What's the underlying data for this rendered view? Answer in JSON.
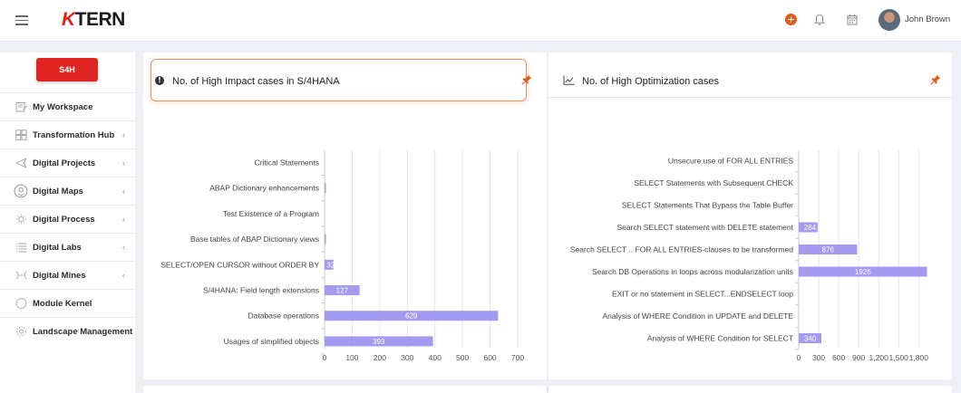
{
  "header": {
    "logo_k": "K",
    "logo_rest": "TERN",
    "user_name": "John Brown"
  },
  "sidebar": {
    "brand_label": "S4H",
    "items": [
      {
        "label": "My Workspace",
        "has_chevron": false
      },
      {
        "label": "Transformation Hub",
        "has_chevron": true
      },
      {
        "label": "Digital Projects",
        "has_chevron": true
      },
      {
        "label": "Digital Maps",
        "has_chevron": true
      },
      {
        "label": "Digital Process",
        "has_chevron": true
      },
      {
        "label": "Digital Labs",
        "has_chevron": true
      },
      {
        "label": "Digital Mines",
        "has_chevron": true
      },
      {
        "label": "Module Kernel",
        "has_chevron": false
      },
      {
        "label": "Landscape Management",
        "has_chevron": false
      }
    ],
    "chevron": "‹"
  },
  "panels": {
    "left_title": "No. of High Impact cases in S/4HANA",
    "right_title": "No. of High Optimization cases"
  },
  "colors": {
    "accent": "#f08a5d",
    "bar": "#a29bf0",
    "brand_red": "#e02522"
  },
  "chart_data": [
    {
      "type": "bar",
      "orientation": "horizontal",
      "title": "No. of High Impact cases in S/4HANA",
      "categories": [
        "Critical Statements",
        "ABAP Dictionary enhancements",
        "Test Existence of a Program",
        "Base tables of ABAP Dictionary views",
        "SELECT/OPEN CURSOR without ORDER BY",
        "S/4HANA: Field length extensions",
        "Database operations",
        "Usages of simplified objects"
      ],
      "values": [
        0,
        2,
        0,
        2,
        32,
        127,
        629,
        393
      ],
      "data_labels": [
        "",
        "",
        "",
        "",
        "32",
        "127",
        "629",
        "393"
      ],
      "xlim": [
        0,
        700
      ],
      "xticks": [
        0,
        100,
        200,
        300,
        400,
        500,
        600,
        700
      ],
      "xtick_labels": [
        "0",
        "100",
        "200",
        "300",
        "400",
        "500",
        "600",
        "700"
      ],
      "grid": true
    },
    {
      "type": "bar",
      "orientation": "horizontal",
      "title": "No. of High Optimization cases",
      "categories": [
        "Unsecure use of FOR ALL ENTRIES",
        "SELECT Statements with Subsequent CHECK",
        "SELECT Statements That Bypass the Table Buffer",
        "Search SELECT statement with DELETE statement",
        "Search SELECT .. FOR ALL ENTRIES-clauses to be transformed",
        "Search DB Operations in loops across modularization units",
        "EXIT or no statement in SELECT...ENDSELECT loop",
        "Analysis of WHERE Condition in UPDATE and DELETE",
        "Analysis of WHERE Condition for SELECT"
      ],
      "values": [
        0,
        0,
        0,
        284,
        876,
        1926,
        0,
        0,
        340
      ],
      "data_labels": [
        "",
        "",
        "",
        "284",
        "876",
        "1926",
        "",
        "",
        "340"
      ],
      "xlim": [
        0,
        2000
      ],
      "xticks": [
        0,
        300,
        600,
        900,
        1200,
        1500,
        1800
      ],
      "xtick_labels": [
        "0",
        "300",
        "600",
        "900",
        "1,200",
        "1,500",
        "1,800"
      ],
      "grid": true
    }
  ]
}
